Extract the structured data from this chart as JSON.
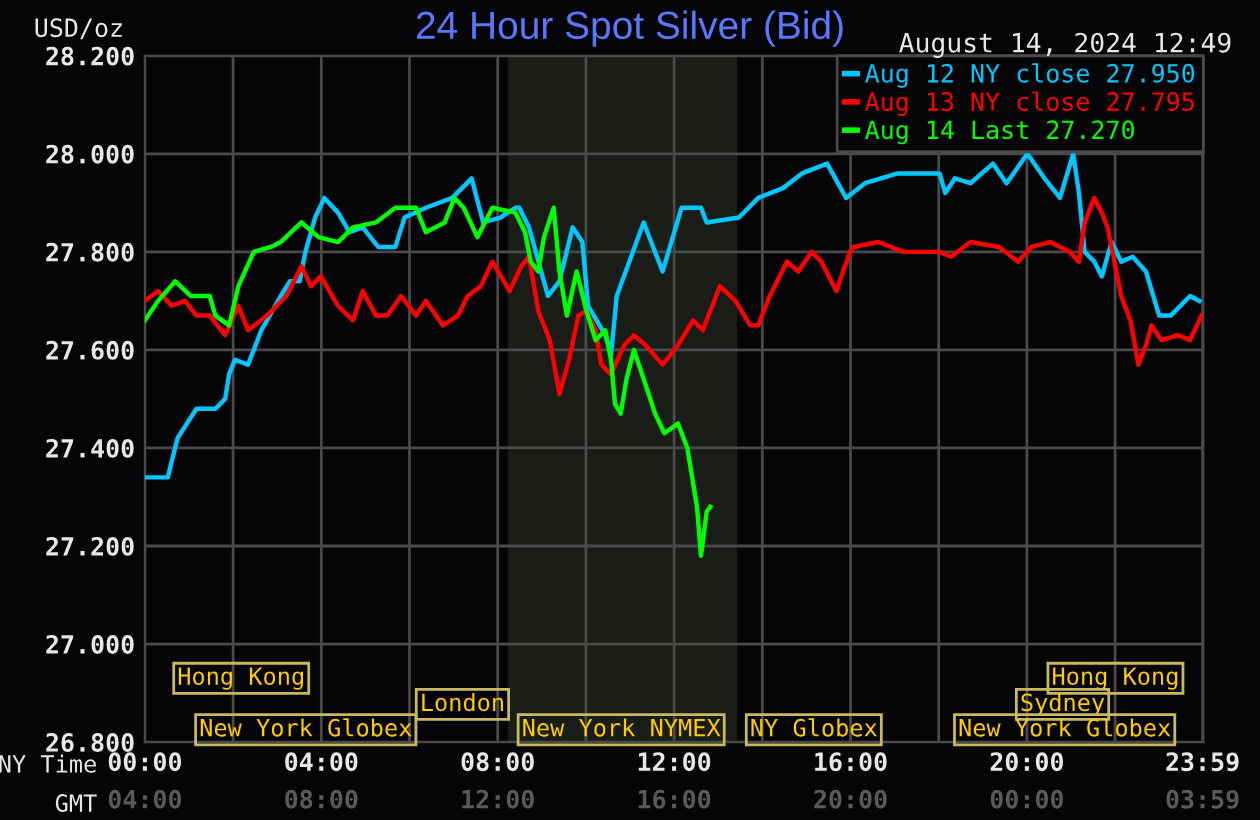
{
  "chart_data": {
    "type": "line",
    "title": "24 Hour Spot Silver (Bid)",
    "subtitle": "August 14, 2024 12:49",
    "ylabel": "USD/oz",
    "xlabel": "NY Time",
    "x2label": "GMT",
    "xlim": [
      0,
      24
    ],
    "ylim": [
      26.8,
      28.2
    ],
    "xticks": [
      {
        "value": 0,
        "label": "00:00"
      },
      {
        "value": 2,
        "label": null
      },
      {
        "value": 4,
        "label": "04:00"
      },
      {
        "value": 6,
        "label": null
      },
      {
        "value": 8,
        "label": "08:00"
      },
      {
        "value": 10,
        "label": null
      },
      {
        "value": 12,
        "label": "12:00"
      },
      {
        "value": 14,
        "label": null
      },
      {
        "value": 16,
        "label": "16:00"
      },
      {
        "value": 18,
        "label": null
      },
      {
        "value": 20,
        "label": "20:00"
      },
      {
        "value": 22,
        "label": null
      },
      {
        "value": 23.983,
        "label": "23:59"
      }
    ],
    "x2lim": [
      "2024-08-14T04:00",
      "2024-08-15T04:00"
    ],
    "x2ticks": [
      {
        "value": "2024-08-14T04:00",
        "label": "04:00"
      },
      {
        "value": "2024-08-14T08:00",
        "label": "08:00"
      },
      {
        "value": "2024-08-14T12:00",
        "label": "12:00"
      },
      {
        "value": "2024-08-14T16:00",
        "label": "16:00"
      },
      {
        "value": "2024-08-14T20:00",
        "label": "20:00"
      },
      {
        "value": "2024-08-15T00:00",
        "label": "00:00"
      },
      {
        "value": "2024-08-15T03:59",
        "label": "03:59"
      }
    ],
    "yticks": [
      {
        "value": 26.8,
        "label": "26.800"
      },
      {
        "value": 27.0,
        "label": "27.000"
      },
      {
        "value": 27.2,
        "label": "27.200"
      },
      {
        "value": 27.4,
        "label": "27.400"
      },
      {
        "value": 27.6,
        "label": "27.600"
      },
      {
        "value": 27.8,
        "label": "27.800"
      },
      {
        "value": 28.0,
        "label": "28.000"
      },
      {
        "value": 28.2,
        "label": "28.200"
      }
    ],
    "grid": true,
    "legend": "top right",
    "marker": "none",
    "line_style": "solid",
    "bands": [
      {
        "axis": "x",
        "from": 8.23,
        "to": 13.43,
        "color": "#1a1c18"
      }
    ],
    "annotations": [
      "Hong Kong",
      "London",
      "New York Globex",
      "New York NYMEX",
      "NY Globex",
      "Hong Kong",
      "Sydney",
      "New York Globex"
    ],
    "series": [
      {
        "name": "Aug 12 NY close 27.950",
        "color": "#00c8ff",
        "x": [
          0,
          0.52,
          0.74,
          1.17,
          1.6,
          1.82,
          1.91,
          2.04,
          2.34,
          2.47,
          2.64,
          3.08,
          3.29,
          3.51,
          3.64,
          3.86,
          4.07,
          4.38,
          4.64,
          4.94,
          5.29,
          5.68,
          5.89,
          6.37,
          6.97,
          7.41,
          7.67,
          8.06,
          8.4,
          8.49,
          8.71,
          9.14,
          9.4,
          9.7,
          9.92,
          10.05,
          10.44,
          10.57,
          10.7,
          11.31,
          11.74,
          12.17,
          12.61,
          12.74,
          13.47,
          13.91,
          14.47,
          14.9,
          15.47,
          15.9,
          16.33,
          17.07,
          18.02,
          18.15,
          18.37,
          18.72,
          19.23,
          19.54,
          20.01,
          20.4,
          20.75,
          21.05,
          21.18,
          21.31,
          21.53,
          21.7,
          21.92,
          22.14,
          22.4,
          22.7,
          23.0,
          23.26,
          23.7,
          23.91
        ],
        "values": [
          27.34,
          27.34,
          27.42,
          27.48,
          27.48,
          27.5,
          27.55,
          27.58,
          27.57,
          27.6,
          27.64,
          27.71,
          27.74,
          27.74,
          27.8,
          27.87,
          27.91,
          27.88,
          27.84,
          27.85,
          27.81,
          27.81,
          27.87,
          27.89,
          27.91,
          27.95,
          27.86,
          27.87,
          27.89,
          27.89,
          27.85,
          27.71,
          27.74,
          27.85,
          27.82,
          27.69,
          27.63,
          27.59,
          27.71,
          27.86,
          27.76,
          27.89,
          27.89,
          27.86,
          27.87,
          27.91,
          27.93,
          27.96,
          27.98,
          27.91,
          27.94,
          27.96,
          27.96,
          27.92,
          27.95,
          27.94,
          27.98,
          27.94,
          28.0,
          27.95,
          27.91,
          28.0,
          27.92,
          27.8,
          27.78,
          27.75,
          27.82,
          27.78,
          27.79,
          27.76,
          27.67,
          27.67,
          27.71,
          27.7
        ]
      },
      {
        "name": "Aug 13 NY close 27.795",
        "color": "#ff0000",
        "x": [
          0,
          0.3,
          0.61,
          0.91,
          1.17,
          1.47,
          1.82,
          2.12,
          2.34,
          2.77,
          3.21,
          3.55,
          3.77,
          3.99,
          4.38,
          4.72,
          4.94,
          5.24,
          5.5,
          5.81,
          6.15,
          6.37,
          6.76,
          7.1,
          7.32,
          7.62,
          7.88,
          8.27,
          8.53,
          8.71,
          8.92,
          9.18,
          9.4,
          9.62,
          9.83,
          10.01,
          10.22,
          10.35,
          10.57,
          10.87,
          11.09,
          11.35,
          11.74,
          12.09,
          12.43,
          12.65,
          13.04,
          13.39,
          13.73,
          13.91,
          14.17,
          14.56,
          14.82,
          15.12,
          15.34,
          15.68,
          15.99,
          16.07,
          16.64,
          17.2,
          18.02,
          18.28,
          18.72,
          19.37,
          19.8,
          20.1,
          20.53,
          20.97,
          21.18,
          21.31,
          21.53,
          21.7,
          21.83,
          22.14,
          22.35,
          22.53,
          22.7,
          22.83,
          23.05,
          23.44,
          23.7,
          23.96
        ],
        "values": [
          27.7,
          27.72,
          27.69,
          27.7,
          27.67,
          27.67,
          27.63,
          27.69,
          27.64,
          27.67,
          27.71,
          27.77,
          27.73,
          27.75,
          27.69,
          27.66,
          27.72,
          27.67,
          27.67,
          27.71,
          27.67,
          27.7,
          27.65,
          27.67,
          27.71,
          27.73,
          27.78,
          27.72,
          27.77,
          27.79,
          27.68,
          27.62,
          27.51,
          27.58,
          27.67,
          27.68,
          27.64,
          27.57,
          27.55,
          27.61,
          27.63,
          27.61,
          27.57,
          27.61,
          27.66,
          27.64,
          27.73,
          27.7,
          27.65,
          27.65,
          27.71,
          27.78,
          27.76,
          27.8,
          27.78,
          27.72,
          27.8,
          27.81,
          27.82,
          27.8,
          27.8,
          27.79,
          27.82,
          27.81,
          27.78,
          27.81,
          27.82,
          27.8,
          27.78,
          27.86,
          27.91,
          27.88,
          27.85,
          27.71,
          27.66,
          27.57,
          27.61,
          27.65,
          27.62,
          27.63,
          27.62,
          27.67
        ]
      },
      {
        "name": "Aug 14 Last 27.270",
        "color": "#00ff00",
        "x": [
          0,
          0.3,
          0.69,
          1.04,
          1.47,
          1.6,
          1.91,
          2.12,
          2.47,
          2.86,
          3.08,
          3.55,
          3.94,
          4.38,
          4.72,
          5.24,
          5.68,
          6.15,
          6.37,
          6.8,
          7.02,
          7.23,
          7.54,
          7.88,
          8.4,
          8.62,
          8.75,
          8.92,
          9.05,
          9.27,
          9.4,
          9.57,
          9.79,
          10.01,
          10.22,
          10.44,
          10.57,
          10.66,
          10.79,
          10.92,
          11.09,
          11.35,
          11.57,
          11.78,
          12.09,
          12.3,
          12.52,
          12.61,
          12.74,
          12.82
        ],
        "values": [
          27.66,
          27.7,
          27.74,
          27.71,
          27.71,
          27.67,
          27.65,
          27.73,
          27.8,
          27.81,
          27.82,
          27.86,
          27.83,
          27.82,
          27.85,
          27.86,
          27.89,
          27.89,
          27.84,
          27.86,
          27.91,
          27.89,
          27.83,
          27.89,
          27.88,
          27.84,
          27.78,
          27.76,
          27.83,
          27.89,
          27.76,
          27.67,
          27.76,
          27.68,
          27.62,
          27.64,
          27.58,
          27.49,
          27.47,
          27.54,
          27.6,
          27.53,
          27.47,
          27.43,
          27.45,
          27.4,
          27.28,
          27.18,
          27.27,
          27.28
        ]
      }
    ]
  }
}
